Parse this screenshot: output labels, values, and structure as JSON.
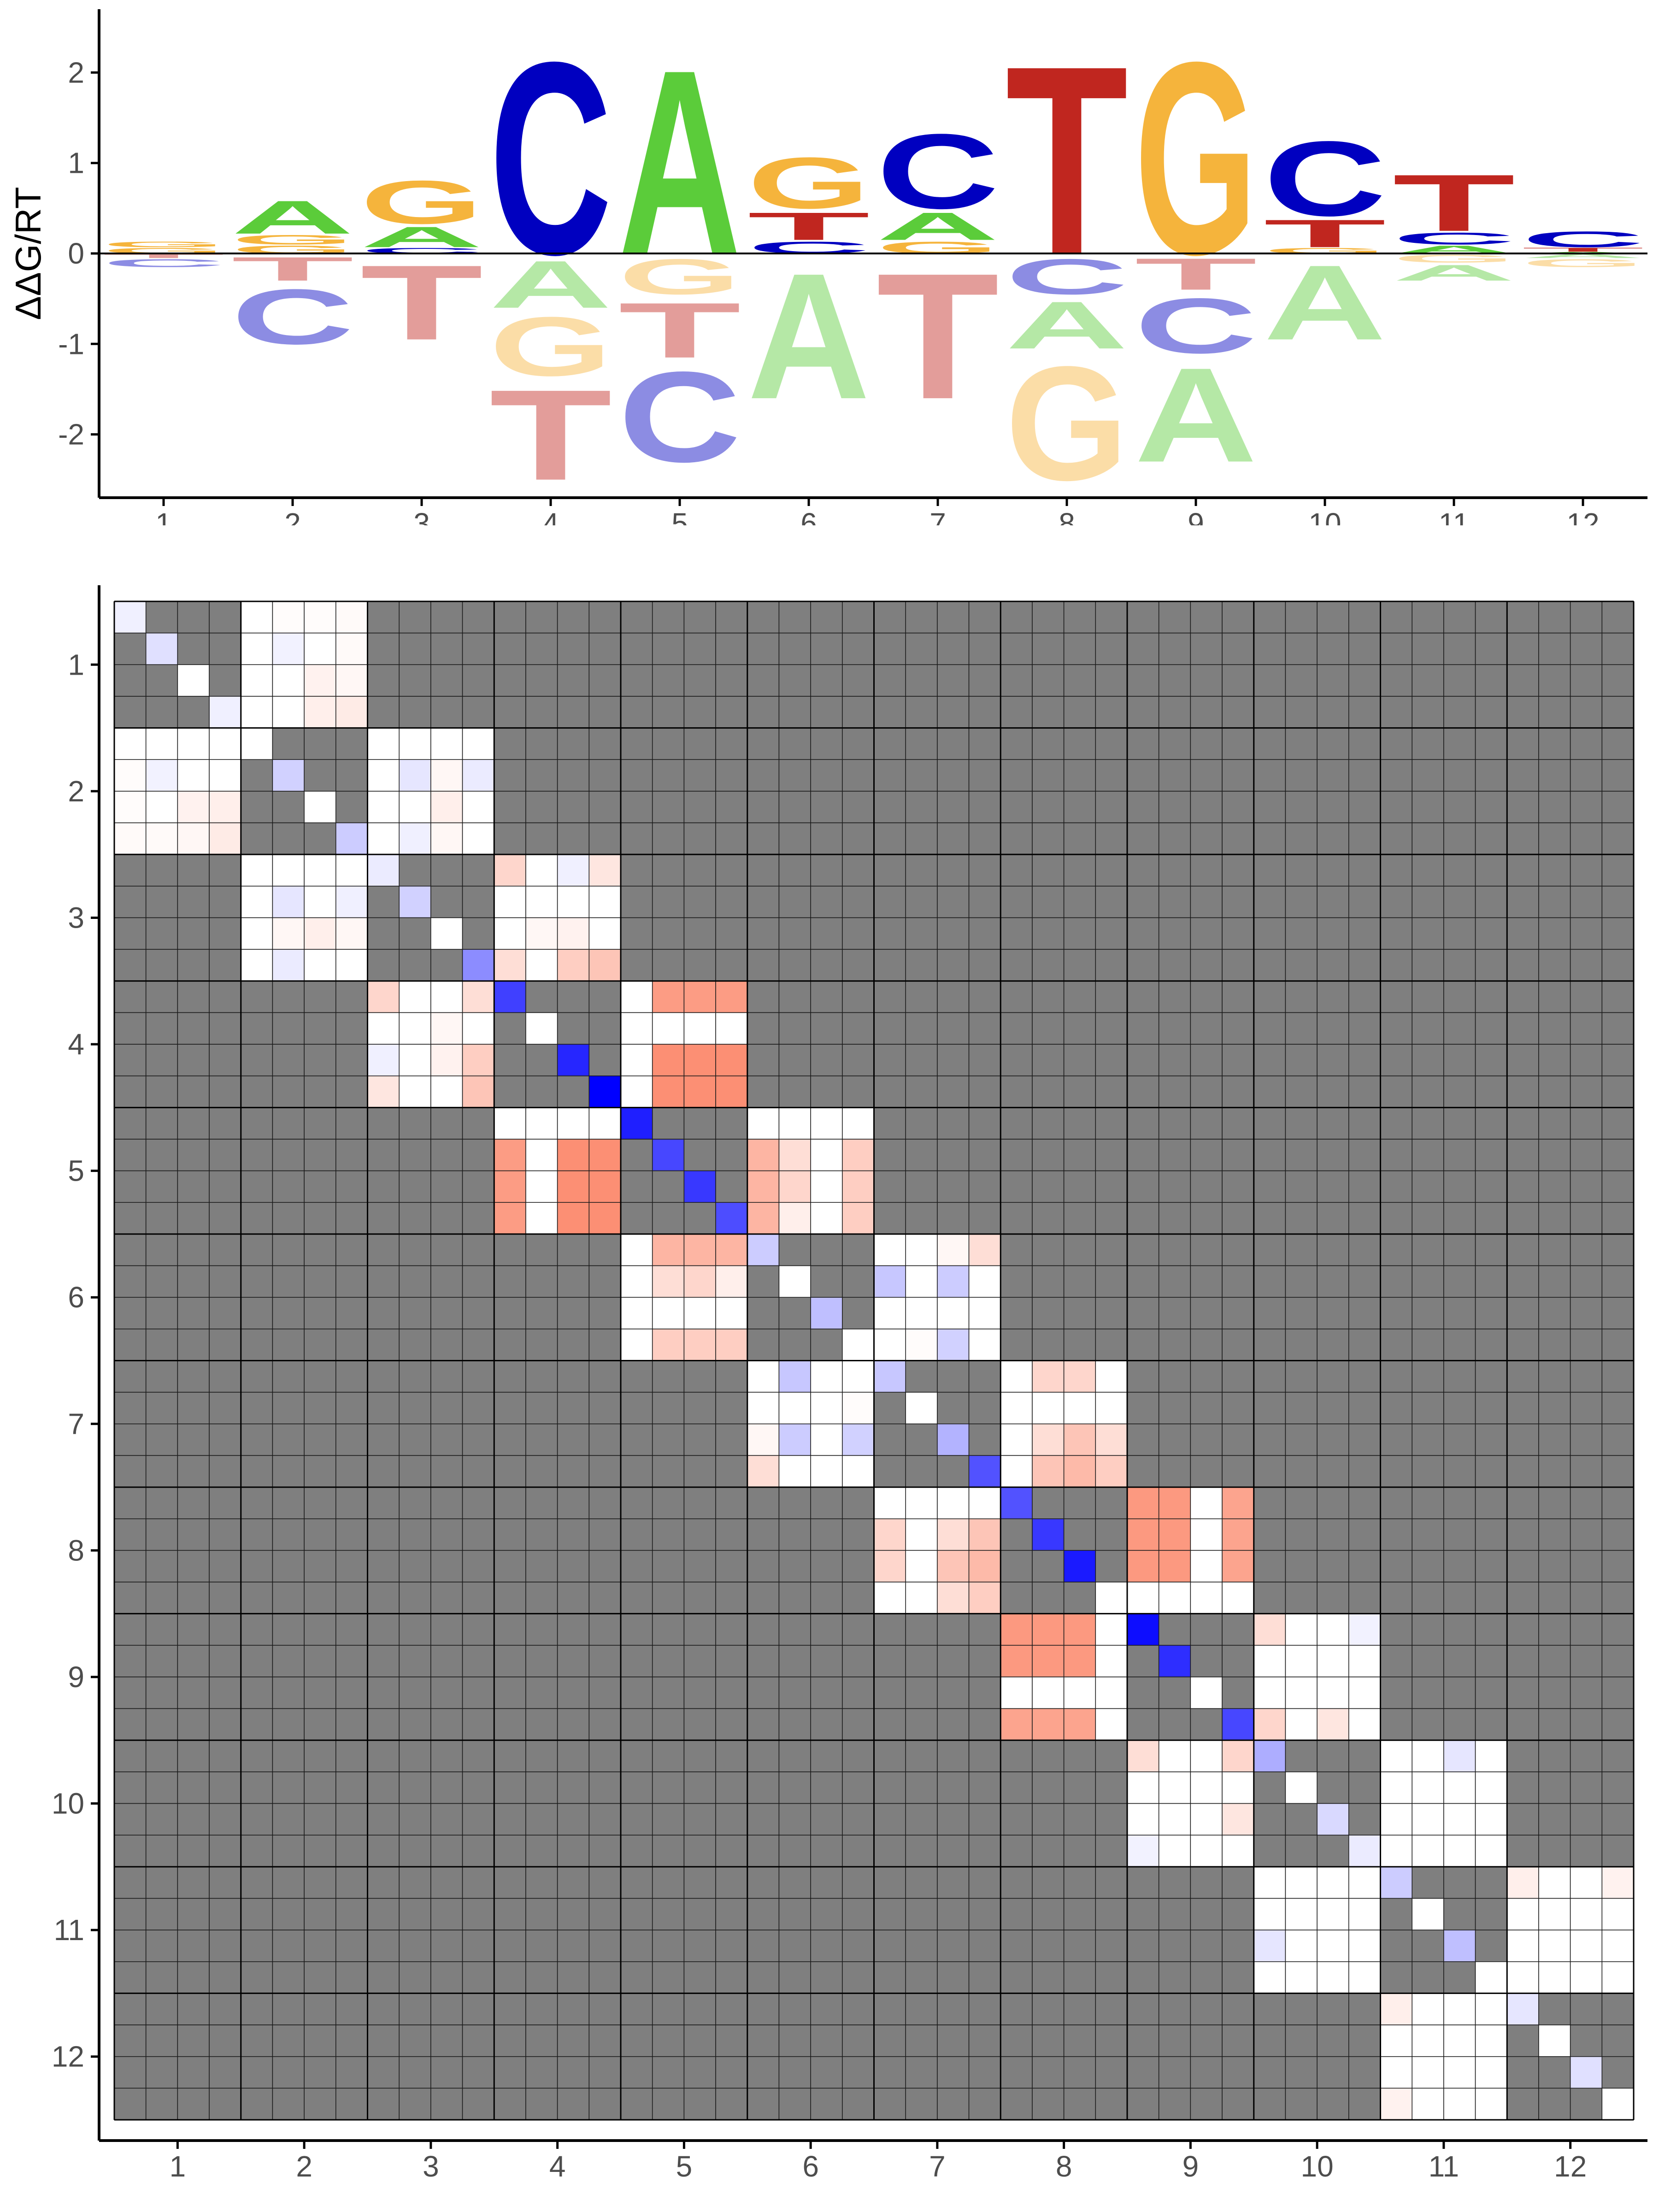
{
  "chart_data": [
    {
      "type": "sequence-logo",
      "ylabel": "ΔΔG/RT",
      "xlabel": "",
      "ylim": [
        -2.7,
        2.7
      ],
      "y_ticks": [
        "-2",
        "-1",
        "0",
        "1",
        "2"
      ],
      "x_ticks": [
        "1",
        "2",
        "3",
        "4",
        "5",
        "6",
        "7",
        "8",
        "9",
        "10",
        "11",
        "12"
      ],
      "colors": {
        "A": "#5bcc3a",
        "C": "#0000c0",
        "G": "#f5b43c",
        "T": "#c0261f"
      },
      "positions": [
        {
          "pos": 1,
          "positive": [
            [
              "G",
              0.07
            ],
            [
              "G",
              0.07
            ]
          ],
          "negative": [
            [
              "T",
              -0.05
            ],
            [
              "C",
              -0.1
            ]
          ]
        },
        {
          "pos": 2,
          "positive": [
            [
              "G",
              0.1
            ],
            [
              "G",
              0.12
            ],
            [
              "A",
              0.42
            ]
          ],
          "negative": [
            [
              "T",
              -0.3
            ],
            [
              "C",
              -0.7
            ]
          ]
        },
        {
          "pos": 3,
          "positive": [
            [
              "C",
              0.07
            ],
            [
              "A",
              0.26
            ],
            [
              "G",
              0.55
            ]
          ],
          "negative": [
            [
              "T",
              -0.95
            ]
          ]
        },
        {
          "pos": 4,
          "positive": [
            [
              "C",
              2.45
            ]
          ],
          "negative": [
            [
              "A",
              -0.6
            ],
            [
              "G",
              -0.75
            ],
            [
              "T",
              -1.15
            ]
          ]
        },
        {
          "pos": 5,
          "positive": [
            [
              "A",
              2.35
            ]
          ],
          "negative": [
            [
              "G",
              -0.45
            ],
            [
              "T",
              -0.7
            ],
            [
              "C",
              -1.15
            ]
          ]
        },
        {
          "pos": 6,
          "positive": [
            [
              "C",
              0.15
            ],
            [
              "T",
              0.35
            ],
            [
              "G",
              0.65
            ]
          ],
          "negative": [
            [
              "A",
              -1.6
            ]
          ]
        },
        {
          "pos": 7,
          "positive": [
            [
              "G",
              0.15
            ],
            [
              "A",
              0.35
            ],
            [
              "C",
              0.95
            ]
          ],
          "negative": [
            [
              "T",
              -1.6
            ]
          ]
        },
        {
          "pos": 8,
          "positive": [
            [
              "T",
              2.4
            ]
          ],
          "negative": [
            [
              "C",
              -0.45
            ],
            [
              "A",
              -0.6
            ],
            [
              "G",
              -1.45
            ]
          ]
        },
        {
          "pos": 9,
          "positive": [
            [
              "G",
              2.45
            ]
          ],
          "negative": [
            [
              "T",
              -0.4
            ],
            [
              "C",
              -0.7
            ],
            [
              "A",
              -1.2
            ]
          ]
        },
        {
          "pos": 10,
          "positive": [
            [
              "G",
              0.07
            ],
            [
              "T",
              0.35
            ],
            [
              "C",
              0.95
            ]
          ],
          "negative": [
            [
              "A",
              -0.95
            ]
          ]
        },
        {
          "pos": 11,
          "positive": [
            [
              "A",
              0.1
            ],
            [
              "C",
              0.15
            ],
            [
              "T",
              0.72
            ]
          ],
          "negative": [
            [
              "G",
              -0.1
            ],
            [
              "A",
              -0.2
            ]
          ]
        },
        {
          "pos": 12,
          "positive": [
            [
              "A",
              0.02
            ],
            [
              "T",
              0.05
            ],
            [
              "C",
              0.2
            ]
          ],
          "negative": [
            [
              "A",
              -0.05
            ],
            [
              "G",
              -0.1
            ]
          ]
        }
      ]
    },
    {
      "type": "heatmap",
      "title": "",
      "x_ticks": [
        "1",
        "2",
        "3",
        "4",
        "5",
        "6",
        "7",
        "8",
        "9",
        "10",
        "11",
        "12"
      ],
      "y_ticks": [
        "1",
        "2",
        "3",
        "4",
        "5",
        "6",
        "7",
        "8",
        "9",
        "10",
        "11",
        "12"
      ],
      "letters_per_position": 4,
      "masked_color": "#7f7f7f",
      "neutral_color": "#ffffff",
      "negative_color": "#0000ff",
      "positive_color": "#fa5a32",
      "value_range": [
        -1,
        1
      ],
      "diagonal_values": [
        [
          -0.06,
          -0.12,
          0.0,
          -0.06
        ],
        [
          0.0,
          -0.18,
          0.0,
          -0.2
        ],
        [
          -0.08,
          -0.18,
          0.0,
          -0.45
        ],
        [
          -0.75,
          0.0,
          -0.85,
          -1.0
        ],
        [
          -0.88,
          -0.72,
          -0.78,
          -0.7
        ],
        [
          -0.2,
          0.0,
          -0.25,
          0.0
        ],
        [
          -0.22,
          0.0,
          -0.3,
          -0.68
        ],
        [
          -0.68,
          -0.78,
          -0.9,
          0.0
        ],
        [
          -0.95,
          -0.82,
          0.0,
          -0.72
        ],
        [
          -0.32,
          0.0,
          -0.15,
          -0.08
        ],
        [
          -0.2,
          0.0,
          -0.25,
          0.0
        ],
        [
          -0.1,
          0.0,
          -0.12,
          0.0
        ]
      ],
      "blocks": [
        {
          "row": 1,
          "col": 2,
          "values": [
            [
              0.0,
              0.02,
              0.02,
              0.03
            ],
            [
              0.0,
              -0.05,
              0.0,
              0.03
            ],
            [
              0.0,
              0.0,
              0.08,
              0.05
            ],
            [
              0.0,
              0.0,
              0.1,
              0.12
            ]
          ]
        },
        {
          "row": 2,
          "col": 3,
          "values": [
            [
              0.0,
              0.0,
              0.0,
              0.0
            ],
            [
              0.0,
              -0.1,
              0.05,
              -0.08
            ],
            [
              0.0,
              0.0,
              0.1,
              0.0
            ],
            [
              0.0,
              -0.06,
              0.05,
              0.0
            ]
          ]
        },
        {
          "row": 3,
          "col": 4,
          "values": [
            [
              0.25,
              0.0,
              -0.06,
              0.15
            ],
            [
              0.0,
              0.0,
              0.0,
              0.0
            ],
            [
              0.0,
              0.05,
              0.08,
              0.0
            ],
            [
              0.2,
              0.0,
              0.3,
              0.35
            ]
          ]
        },
        {
          "row": 4,
          "col": 5,
          "values": [
            [
              0.0,
              0.6,
              0.6,
              0.6
            ],
            [
              0.0,
              0.0,
              0.0,
              0.0
            ],
            [
              0.0,
              0.68,
              0.68,
              0.68
            ],
            [
              0.0,
              0.68,
              0.68,
              0.68
            ]
          ]
        },
        {
          "row": 5,
          "col": 6,
          "values": [
            [
              0.0,
              0.0,
              0.0,
              0.0
            ],
            [
              0.45,
              0.2,
              0.0,
              0.3
            ],
            [
              0.45,
              0.25,
              0.0,
              0.3
            ],
            [
              0.45,
              0.1,
              0.0,
              0.3
            ]
          ]
        },
        {
          "row": 6,
          "col": 7,
          "values": [
            [
              0.0,
              0.0,
              0.05,
              0.2
            ],
            [
              -0.22,
              0.0,
              -0.2,
              0.0
            ],
            [
              0.0,
              0.0,
              0.0,
              0.0
            ],
            [
              0.0,
              0.02,
              -0.18,
              0.0
            ]
          ]
        },
        {
          "row": 7,
          "col": 8,
          "values": [
            [
              0.0,
              0.25,
              0.25,
              0.0
            ],
            [
              0.0,
              0.0,
              0.0,
              0.0
            ],
            [
              0.0,
              0.2,
              0.35,
              0.2
            ],
            [
              0.0,
              0.35,
              0.42,
              0.3
            ]
          ]
        },
        {
          "row": 8,
          "col": 9,
          "values": [
            [
              0.62,
              0.62,
              0.0,
              0.55
            ],
            [
              0.62,
              0.62,
              0.0,
              0.55
            ],
            [
              0.62,
              0.62,
              0.0,
              0.55
            ],
            [
              0.0,
              0.0,
              0.0,
              0.0
            ]
          ]
        },
        {
          "row": 9,
          "col": 10,
          "values": [
            [
              0.2,
              0.0,
              0.0,
              -0.05
            ],
            [
              0.0,
              0.0,
              0.0,
              0.0
            ],
            [
              0.0,
              0.0,
              0.0,
              0.0
            ],
            [
              0.25,
              0.0,
              0.15,
              0.0
            ]
          ]
        },
        {
          "row": 10,
          "col": 11,
          "values": [
            [
              0.0,
              0.0,
              -0.1,
              0.0
            ],
            [
              0.0,
              0.0,
              0.0,
              0.0
            ],
            [
              0.0,
              0.0,
              0.0,
              0.0
            ],
            [
              0.0,
              0.0,
              0.0,
              0.0
            ]
          ]
        },
        {
          "row": 11,
          "col": 12,
          "values": [
            [
              0.1,
              0.0,
              0.0,
              0.08
            ],
            [
              0.0,
              0.0,
              0.0,
              0.0
            ],
            [
              0.0,
              0.0,
              0.0,
              0.0
            ],
            [
              0.0,
              0.0,
              0.0,
              0.0
            ]
          ]
        }
      ]
    }
  ]
}
